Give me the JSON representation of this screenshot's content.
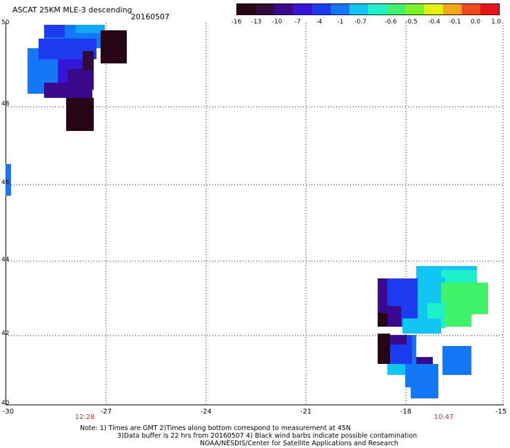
{
  "header": {
    "title": "ASCAT 25KM MLE-3 descending",
    "date": "20160507"
  },
  "colorbar": {
    "labels": [
      "-16",
      "-13",
      "-10",
      "-7",
      "-4",
      "-1",
      "-0.7",
      "-0.6",
      "-0.5",
      "-0.4",
      "-0.1",
      "0.0",
      "1.0"
    ],
    "colors": [
      "#250516",
      "#310b3c",
      "#3b0a8c",
      "#3316d8",
      "#1d3cf0",
      "#1478f6",
      "#10c6f2",
      "#1ef0c8",
      "#3ef36a",
      "#7af22a",
      "#e4ee10",
      "#f6a51a",
      "#f04a1e",
      "#e8141a"
    ]
  },
  "axes": {
    "y_ticks": [
      "50",
      "48",
      "46",
      "44",
      "42",
      "40"
    ],
    "x_ticks": [
      "-30",
      "-27",
      "-24",
      "-21",
      "-18",
      "-15"
    ]
  },
  "times": [
    "12:28",
    "10:47"
  ],
  "notes": [
    "Note: 1) Times are GMT 2)Times along bottom correspond to measurement at 45N",
    "3)Data buffer is 22 hrs from 20160507 4) Black wind barbs indicate possible contamination",
    "NOAA/NESDIS/Center for Satellite Applications and Research"
  ]
}
